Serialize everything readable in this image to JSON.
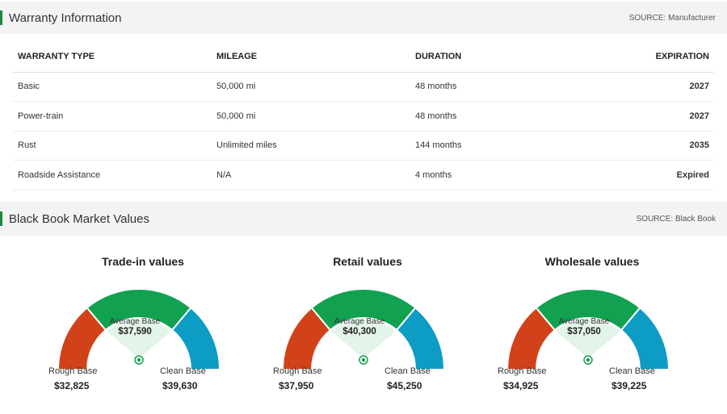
{
  "warranty": {
    "title": "Warranty Information",
    "source": "SOURCE: Manufacturer",
    "columns": [
      "WARRANTY TYPE",
      "MILEAGE",
      "DURATION",
      "EXPIRATION"
    ],
    "rows": [
      {
        "type": "Basic",
        "mileage": "50,000 mi",
        "duration": "48 months",
        "expiration": "2027",
        "status": "active"
      },
      {
        "type": "Power-train",
        "mileage": "50,000 mi",
        "duration": "48 months",
        "expiration": "2027",
        "status": "active"
      },
      {
        "type": "Rust",
        "mileage": "Unlimited miles",
        "duration": "144 months",
        "expiration": "2035",
        "status": "active"
      },
      {
        "type": "Roadside Assistance",
        "mileage": "N/A",
        "duration": "4 months",
        "expiration": "Expired",
        "status": "expired"
      }
    ],
    "colors": {
      "active": "#1a9c48",
      "expired": "#d98a14",
      "accent": "#1a8a3c"
    }
  },
  "blackbook": {
    "title": "Black Book Market Values",
    "source": "SOURCE: Black Book",
    "gauges": [
      {
        "title": "Trade-in values",
        "avg_label": "Average Base",
        "avg_value": "$37,590",
        "rough_label": "Rough Base",
        "rough_value": "$32,825",
        "clean_label": "Clean Base",
        "clean_value": "$39,630"
      },
      {
        "title": "Retail values",
        "avg_label": "Average Base",
        "avg_value": "$40,300",
        "rough_label": "Rough Base",
        "rough_value": "$37,950",
        "clean_label": "Clean Base",
        "clean_value": "$45,250"
      },
      {
        "title": "Wholesale values",
        "avg_label": "Average Base",
        "avg_value": "$37,050",
        "rough_label": "Rough Base",
        "rough_value": "$34,925",
        "clean_label": "Clean Base",
        "clean_value": "$39,225"
      }
    ],
    "colors": {
      "rough": "#d2421a",
      "average": "#12a150",
      "clean": "#0d9cc4"
    }
  }
}
